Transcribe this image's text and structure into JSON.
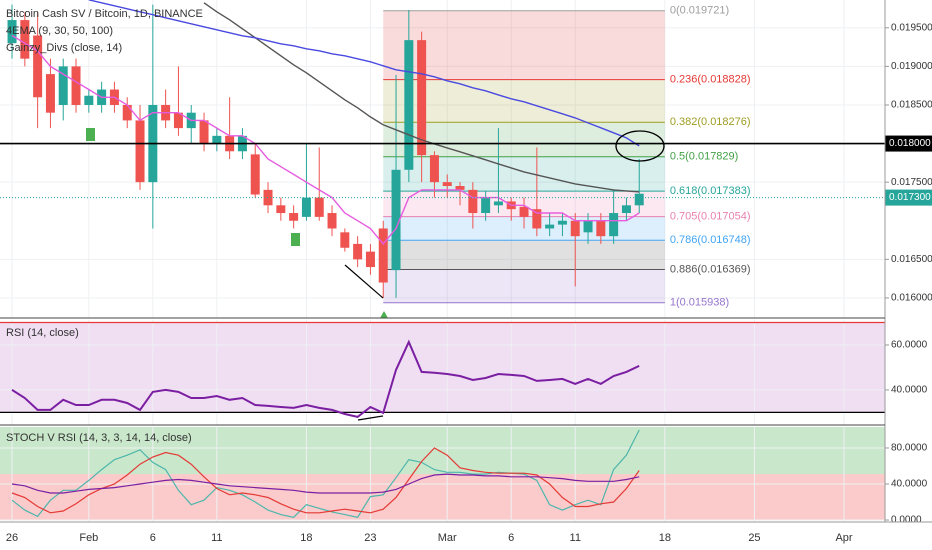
{
  "chart_data": [
    {
      "type": "candlestick",
      "title": "Bitcoin Cash SV / Bitcoin, 1D, BINANCE",
      "legend": [
        "4EMA (9, 30, 50, 100)",
        "Gainzy_Divs (close, 14)"
      ],
      "up_color": "#26a69a",
      "down_color": "#ef5350",
      "open": [
        0.0193,
        0.0196,
        0.0194,
        0.0189,
        0.0185,
        0.019,
        0.0185,
        0.0185,
        0.0187,
        0.0185,
        0.0183,
        0.0175,
        0.0185,
        0.0184,
        0.0182,
        0.0183,
        0.018,
        0.0181,
        0.0179,
        0.01786,
        0.0174,
        0.0172,
        0.0171,
        0.01705,
        0.0173,
        0.0171,
        0.01685,
        0.0167,
        0.0166,
        0.0169,
        0.01636,
        0.01766,
        0.01934,
        0.01785,
        0.0175,
        0.01745,
        0.0174,
        0.0171,
        0.0172,
        0.01725,
        0.01718,
        0.01715,
        0.0169,
        0.01695,
        0.017,
        0.01685,
        0.017,
        0.0168,
        0.0171,
        0.0172
      ],
      "high": [
        0.0198,
        0.0197,
        0.0197,
        0.0191,
        0.0191,
        0.0191,
        0.0187,
        0.0188,
        0.0188,
        0.0186,
        0.0185,
        0.0198,
        0.0187,
        0.019,
        0.0185,
        0.0184,
        0.0182,
        0.0186,
        0.0182,
        0.018,
        0.0175,
        0.0173,
        0.0172,
        0.018,
        0.01795,
        0.0172,
        0.0169,
        0.0168,
        0.0167,
        0.017,
        0.01889,
        0.01973,
        0.01945,
        0.0179,
        0.0176,
        0.0175,
        0.0175,
        0.01738,
        0.0182,
        0.0173,
        0.0173,
        0.01795,
        0.0171,
        0.0171,
        0.0171,
        0.0171,
        0.0171,
        0.0174,
        0.0173,
        0.0178
      ],
      "low": [
        0.0191,
        0.019,
        0.0182,
        0.0182,
        0.0183,
        0.0184,
        0.0184,
        0.0184,
        0.0184,
        0.0182,
        0.0174,
        0.0169,
        0.0182,
        0.0181,
        0.018,
        0.0179,
        0.0179,
        0.0178,
        0.0178,
        0.0173,
        0.0171,
        0.017,
        0.0169,
        0.017,
        0.017,
        0.0168,
        0.0166,
        0.0164,
        0.0163,
        0.016,
        0.016,
        0.0175,
        0.0175,
        0.0173,
        0.0173,
        0.0172,
        0.0169,
        0.017,
        0.0171,
        0.017,
        0.0169,
        0.0168,
        0.0168,
        0.0168,
        0.01615,
        0.0167,
        0.0167,
        0.0167,
        0.017,
        0.0171
      ],
      "close": [
        0.0196,
        0.0191,
        0.0186,
        0.0184,
        0.019,
        0.0185,
        0.01862,
        0.0187,
        0.0185,
        0.0183,
        0.0175,
        0.0185,
        0.0183,
        0.0182,
        0.0184,
        0.018,
        0.0181,
        0.0179,
        0.0181,
        0.01734,
        0.0172,
        0.0171,
        0.017,
        0.0173,
        0.01705,
        0.0169,
        0.01665,
        0.0165,
        0.0164,
        0.0162,
        0.01766,
        0.01934,
        0.01785,
        0.0175,
        0.01745,
        0.0174,
        0.0171,
        0.0173,
        0.01725,
        0.01715,
        0.01705,
        0.0169,
        0.01695,
        0.017,
        0.0168,
        0.017,
        0.0168,
        0.0171,
        0.0172,
        0.01735
      ],
      "overlays": [
        {
          "color": "#e65ce0",
          "values": [
            0.0194,
            0.0193,
            0.0192,
            0.019,
            0.0189,
            0.0188,
            0.0187,
            0.0186,
            0.0186,
            0.0185,
            0.0183,
            0.0184,
            0.0184,
            0.0184,
            0.0183,
            0.0183,
            0.0182,
            0.0181,
            0.0181,
            0.018,
            0.0178,
            0.0177,
            0.0176,
            0.0175,
            0.0174,
            0.0173,
            0.0171,
            0.017,
            0.0169,
            0.0167,
            0.0169,
            0.0173,
            0.0174,
            0.0174,
            0.0174,
            0.0174,
            0.0173,
            0.0173,
            0.0173,
            0.0172,
            0.0172,
            0.0171,
            0.0171,
            0.0171,
            0.017,
            0.017,
            0.017,
            0.017,
            0.017,
            0.0171
          ]
        },
        {
          "color": "#555555",
          "values": [
            null,
            null,
            null,
            null,
            null,
            null,
            null,
            null,
            null,
            null,
            null,
            null,
            null,
            null,
            null,
            0.019824,
            0.019707,
            0.019604,
            0.019487,
            0.019371,
            0.019254,
            0.019137,
            0.01902,
            0.018917,
            0.0188,
            0.018683,
            0.018567,
            0.018463,
            0.018346,
            0.018243,
            0.018178,
            0.018113,
            0.018048,
            0.017996,
            0.017944,
            0.017893,
            0.017841,
            0.017789,
            0.017737,
            0.017685,
            0.017633,
            0.017594,
            0.017555,
            0.017516,
            0.017478,
            0.017452,
            0.017426,
            0.0174,
            0.017387,
            0.017374
          ]
        },
        {
          "color": "#4a4ae0",
          "values": [
            null,
            null,
            null,
            null,
            null,
            null,
            0.019863,
            0.019824,
            0.019785,
            0.019746,
            0.019707,
            0.019669,
            0.01963,
            0.019591,
            0.019552,
            0.019513,
            0.019474,
            0.019435,
            0.019396,
            0.01937,
            0.019332,
            0.019293,
            0.019267,
            0.019228,
            0.019202,
            0.019163,
            0.019137,
            0.019098,
            0.019059,
            0.019007,
            0.018956,
            0.01893,
            0.018904,
            0.018865,
            0.018813,
            0.018774,
            0.018722,
            0.018683,
            0.018631,
            0.01858,
            0.018541,
            0.018489,
            0.018437,
            0.018385,
            0.018333,
            0.018268,
            0.018204,
            0.018139,
            0.018074,
            0.01797
          ]
        }
      ],
      "fib_levels": [
        {
          "value": 0.019721,
          "label": "0(0.019721)",
          "color": "#9e9e9e"
        },
        {
          "value": 0.018828,
          "label": "0.236(0.018828)",
          "color": "#e53935"
        },
        {
          "value": 0.018276,
          "label": "0.382(0.018276)",
          "color": "#9e9d24"
        },
        {
          "value": 0.017829,
          "label": "0.5(0.017829)",
          "color": "#43a047"
        },
        {
          "value": 0.017383,
          "label": "0.618(0.017383)",
          "color": "#26a69a"
        },
        {
          "value": 0.017054,
          "label": "0.705(0.017054)",
          "color": "#e880b0"
        },
        {
          "value": 0.016748,
          "label": "0.786(0.016748)",
          "color": "#42a5f5"
        },
        {
          "value": 0.016369,
          "label": "0.886(0.016369)",
          "color": "#555555"
        },
        {
          "value": 0.015938,
          "label": "1(0.015938)",
          "color": "#9575cd"
        }
      ],
      "price_labels": [
        {
          "value": 0.018,
          "label": "0.018000",
          "color": "#000000"
        },
        {
          "value": 0.0173,
          "label": "0.017300",
          "color": "#26a69a"
        }
      ],
      "xlim": [
        -0.94,
        68.2
      ],
      "ylim": [
        0.01574,
        0.01986
      ],
      "yticks": [
        {
          "value": 0.016,
          "label": "0.016000"
        },
        {
          "value": 0.0165,
          "label": "0.016500"
        },
        {
          "value": 0.0175,
          "label": "0.017500"
        },
        {
          "value": 0.0185,
          "label": "0.018500"
        },
        {
          "value": 0.019,
          "label": "0.019000"
        },
        {
          "value": 0.0195,
          "label": "0.019500"
        }
      ],
      "grid": true
    },
    {
      "type": "line",
      "title": "RSI (14, close)",
      "series": [
        {
          "color": "#7b1fa2",
          "values": [
            40,
            36.4,
            31.1,
            31.1,
            35.6,
            33.3,
            33.3,
            35.6,
            35.6,
            34.2,
            31.1,
            39.1,
            40,
            39.1,
            36.4,
            36.4,
            37.3,
            35.6,
            36.4,
            33.3,
            32.9,
            32.4,
            32,
            33.3,
            32,
            31.1,
            29.3,
            28,
            32.4,
            29.8,
            48.9,
            61.3,
            48,
            47.6,
            47.1,
            46.2,
            44.4,
            45.3,
            47.1,
            46.7,
            46.2,
            44,
            44.4,
            44.9,
            42.7,
            44.9,
            42.7,
            46.2,
            48,
            50.7
          ]
        }
      ],
      "hlines": [
        {
          "value": 70,
          "color": "#e53935"
        },
        {
          "value": 30,
          "color": "#000000"
        }
      ],
      "bands": [
        {
          "from": 30,
          "to": 70,
          "color": "#ce93d8"
        }
      ],
      "xlim": [
        -0.94,
        68.2
      ],
      "ylim": [
        24.4,
        71.1
      ],
      "yticks": [
        {
          "value": 40,
          "label": "40.0000"
        },
        {
          "value": 60,
          "label": "60.0000"
        }
      ],
      "grid": true
    },
    {
      "type": "line",
      "title": "STOCH V RSI (14, 3, 3, 14, 14, close)",
      "series": [
        {
          "color": "#4db6ac",
          "values": [
            22,
            11,
            4,
            22,
            33,
            33,
            44,
            56,
            67,
            72,
            78,
            64,
            56,
            33,
            17,
            22,
            36,
            33,
            28,
            20,
            11,
            6,
            3,
            17,
            13,
            9,
            6,
            3,
            26,
            28,
            47,
            67,
            64,
            56,
            53,
            53,
            51,
            51,
            53,
            52,
            51,
            44,
            17,
            11,
            17,
            22,
            17,
            56,
            72,
            100
          ]
        },
        {
          "color": "#e53935",
          "values": [
            30,
            25,
            15,
            8,
            10,
            18,
            28,
            35,
            40,
            50,
            62,
            70,
            75,
            72,
            62,
            48,
            35,
            28,
            30,
            28,
            25,
            18,
            12,
            8,
            8,
            10,
            12,
            10,
            8,
            12,
            25,
            45,
            65,
            80,
            72,
            58,
            55,
            53,
            52,
            52,
            52,
            50,
            40,
            25,
            15,
            15,
            18,
            20,
            35,
            55
          ]
        },
        {
          "color": "#7b1fa2",
          "values": [
            40,
            38,
            33,
            30,
            30,
            32,
            34,
            35,
            36,
            38,
            40,
            42,
            44,
            45,
            44,
            42,
            40,
            38,
            37,
            36,
            35,
            34,
            33,
            31,
            30,
            30,
            30,
            30,
            30,
            31,
            34,
            40,
            46,
            50,
            51,
            50,
            50,
            49,
            49,
            48,
            48,
            48,
            47,
            46,
            44,
            43,
            43,
            43,
            45,
            48
          ]
        }
      ],
      "bands": [
        {
          "from": 51,
          "to": 103.3,
          "color": "#4caf50"
        },
        {
          "from": 0,
          "to": 51,
          "color": "#ef5350"
        }
      ],
      "xlim": [
        -0.94,
        68.2
      ],
      "ylim": [
        -2.2,
        103.3
      ],
      "yticks": [
        {
          "value": 0,
          "label": "0.0000"
        },
        {
          "value": 40,
          "label": "40.0000"
        },
        {
          "value": 80,
          "label": "80.0000"
        }
      ],
      "xticks": [
        {
          "value": 0,
          "label": "26"
        },
        {
          "value": 6,
          "label": "Feb"
        },
        {
          "value": 11,
          "label": "6"
        },
        {
          "value": 16,
          "label": "11"
        },
        {
          "value": 23,
          "label": "18"
        },
        {
          "value": 28,
          "label": "23"
        },
        {
          "value": 34,
          "label": "Mar"
        },
        {
          "value": 39,
          "label": "6"
        },
        {
          "value": 44,
          "label": "11"
        },
        {
          "value": 51,
          "label": "18"
        },
        {
          "value": 58,
          "label": "25"
        },
        {
          "value": 65,
          "label": "Apr"
        }
      ],
      "grid": true
    }
  ]
}
